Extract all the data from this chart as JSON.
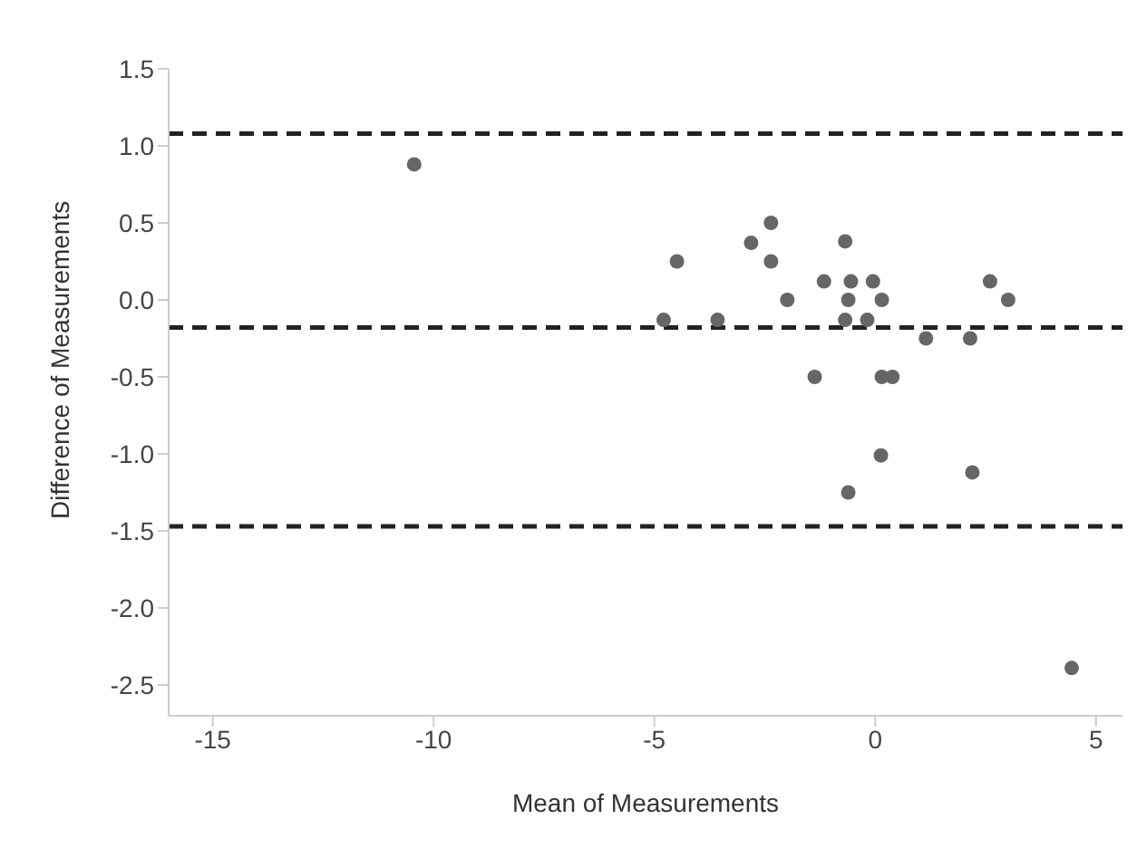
{
  "chart_data": {
    "type": "scatter",
    "xlabel": "Mean of Measurements",
    "ylabel": "Difference of Measurements",
    "x": [
      -10.44,
      -4.79,
      -4.49,
      -3.57,
      -2.81,
      -2.36,
      -2.36,
      -1.99,
      -1.37,
      -1.16,
      -0.68,
      -0.61,
      -0.55,
      -0.68,
      -0.61,
      -0.18,
      -0.05,
      0.15,
      0.15,
      0.39,
      0.13,
      1.15,
      2.15,
      2.2,
      2.6,
      3.01,
      4.45
    ],
    "values": [
      0.88,
      -0.13,
      0.25,
      -0.13,
      0.37,
      0.5,
      0.25,
      0,
      -0.5,
      0.12,
      0.38,
      0,
      0.12,
      -0.13,
      -1.25,
      -0.13,
      0.12,
      0,
      -0.5,
      -0.5,
      -1.01,
      -0.25,
      -0.25,
      -1.12,
      0.12,
      0,
      -2.39
    ],
    "color": "#666666",
    "marker": "circle",
    "xlim": [
      -16,
      5.6
    ],
    "xticks": [
      -15,
      -10,
      -5,
      0,
      5
    ],
    "ylim": [
      -2.7,
      1.5
    ],
    "yticks": [
      {
        "value": -2.5,
        "label": "-2.5"
      },
      {
        "value": -2,
        "label": "-2.0"
      },
      {
        "value": -1.5,
        "label": "-1.5"
      },
      {
        "value": -1,
        "label": "-1.0"
      },
      {
        "value": -0.5,
        "label": "-0.5"
      },
      {
        "value": 0,
        "label": "0.0"
      },
      {
        "value": 0.5,
        "label": "0.5"
      },
      {
        "value": 1,
        "label": "1.0"
      },
      {
        "value": 1.5,
        "label": "1.5"
      }
    ],
    "ref_lines": [
      {
        "axis": "y",
        "value": 1.08,
        "line_style": "dashed",
        "color": "#222222"
      },
      {
        "axis": "y",
        "value": -0.18,
        "line_style": "dashed",
        "color": "#222222"
      },
      {
        "axis": "y",
        "value": -1.47,
        "line_style": "dashed",
        "color": "#222222"
      }
    ],
    "grid": false,
    "legend": false
  }
}
